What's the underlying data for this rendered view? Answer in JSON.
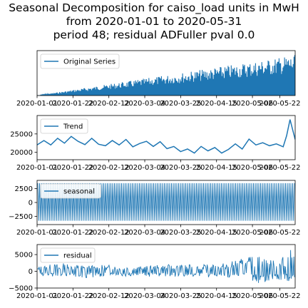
{
  "title_lines": [
    "Seasonal Decomposition for caiso_load units in MwH",
    "from 2020-01-01 to 2020-05-31",
    "period 48;  residual ADFuller pval 0.0"
  ],
  "colors": {
    "series": "#1f77b4"
  },
  "chart_data": [
    {
      "type": "line",
      "title": "",
      "xlabel": "",
      "ylabel": "",
      "xlim": [
        "2020-01-01",
        "2020-05-31"
      ],
      "xticks": [
        "2020-01-01",
        "2020-01-22",
        "2020-02-12",
        "2020-03-04",
        "2020-03-25",
        "2020-04-15",
        "2020-05-06",
        "2020-05-22"
      ],
      "xtick_labels": [
        "2020-01-01",
        "2020-01-22",
        "2020-02-12",
        "2020-03-04",
        "2020-03-25",
        "2020-04-15",
        "2020-05-06",
        "2020-05-22"
      ],
      "yticks": [],
      "ylim": [
        -5000,
        100000
      ],
      "legend": "top-left",
      "series": [
        {
          "name": "Original Series",
          "band": {
            "x": [
              "2020-01-01",
              "2020-05-31"
            ],
            "low": [
              -5000,
              -5000
            ],
            "high": [
              -5000,
              90000
            ]
          },
          "note_text": ""
        }
      ]
    },
    {
      "type": "line",
      "xlim": [
        "2020-01-01",
        "2020-05-31"
      ],
      "xticks": [
        "2020-01-01",
        "2020-01-22",
        "2020-02-12",
        "2020-03-04",
        "2020-03-25",
        "2020-04-15",
        "2020-05-06",
        "2020-05-22"
      ],
      "xtick_labels": [
        "2020-01-01",
        "2020-01-22",
        "2020-02-12",
        "2020-03-04",
        "2020-03-25",
        "2020-04-15",
        "2020-05-06",
        "2020-05-22"
      ],
      "yticks": [
        20000,
        25000
      ],
      "ytick_labels": [
        "20000",
        "25000"
      ],
      "ylim": [
        18000,
        30000
      ],
      "legend": "top-left",
      "series": [
        {
          "name": "Trend",
          "x": [
            "2020-01-01",
            "2020-01-05",
            "2020-01-09",
            "2020-01-13",
            "2020-01-17",
            "2020-01-21",
            "2020-01-25",
            "2020-01-29",
            "2020-02-02",
            "2020-02-06",
            "2020-02-10",
            "2020-02-14",
            "2020-02-18",
            "2020-02-22",
            "2020-02-26",
            "2020-03-01",
            "2020-03-05",
            "2020-03-09",
            "2020-03-13",
            "2020-03-17",
            "2020-03-21",
            "2020-03-25",
            "2020-03-29",
            "2020-04-02",
            "2020-04-06",
            "2020-04-10",
            "2020-04-14",
            "2020-04-18",
            "2020-04-22",
            "2020-04-26",
            "2020-04-30",
            "2020-05-04",
            "2020-05-08",
            "2020-05-12",
            "2020-05-16",
            "2020-05-20",
            "2020-05-24",
            "2020-05-26",
            "2020-05-28",
            "2020-05-31"
          ],
          "y": [
            22000,
            23200,
            22000,
            23800,
            22500,
            24300,
            23000,
            22100,
            23800,
            22200,
            21800,
            23200,
            22000,
            23500,
            21500,
            22400,
            23000,
            21600,
            22900,
            21000,
            21600,
            20200,
            20900,
            19800,
            21600,
            20400,
            21300,
            19800,
            20800,
            22300,
            20900,
            23600,
            22000,
            22600,
            21800,
            22300,
            21500,
            24500,
            28900,
            23500
          ]
        }
      ]
    },
    {
      "type": "line",
      "xlim": [
        "2020-01-01",
        "2020-05-31"
      ],
      "xticks": [
        "2020-01-01",
        "2020-01-22",
        "2020-02-12",
        "2020-03-04",
        "2020-03-25",
        "2020-04-15",
        "2020-05-06",
        "2020-05-22"
      ],
      "xtick_labels": [
        "2020-01-01",
        "2020-01-22",
        "2020-02-12",
        "2020-03-04",
        "2020-03-25",
        "2020-04-15",
        "2020-05-06",
        "2020-05-22"
      ],
      "yticks": [
        -2500,
        0,
        2500
      ],
      "ytick_labels": [
        "−2500",
        "0",
        "2500"
      ],
      "ylim": [
        -4000,
        4000
      ],
      "legend": "top-left",
      "series": [
        {
          "name": "seasonal",
          "band": {
            "x": [
              "2020-01-01",
              "2020-05-31"
            ],
            "low": [
              -3300,
              -3300
            ],
            "high": [
              3500,
              3500
            ]
          }
        }
      ]
    },
    {
      "type": "line",
      "xlim": [
        "2020-01-01",
        "2020-05-31"
      ],
      "xticks": [
        "2020-01-01",
        "2020-01-22",
        "2020-02-12",
        "2020-03-04",
        "2020-03-25",
        "2020-04-15",
        "2020-05-06",
        "2020-05-22"
      ],
      "xtick_labels": [
        "2020-01-01",
        "2020-01-22",
        "2020-02-12",
        "2020-03-04",
        "2020-03-25",
        "2020-04-15",
        "2020-05-06",
        "2020-05-22"
      ],
      "yticks": [
        -5000,
        0,
        5000
      ],
      "ytick_labels": [
        "−5000",
        "0",
        "5000"
      ],
      "ylim": [
        -5000,
        8000
      ],
      "legend": "top-left",
      "series": [
        {
          "name": "residual",
          "band": {
            "x": [
              "2020-01-01",
              "2020-01-15",
              "2020-02-01",
              "2020-02-15",
              "2020-03-01",
              "2020-03-15",
              "2020-04-01",
              "2020-04-15",
              "2020-05-01",
              "2020-05-10",
              "2020-05-20",
              "2020-05-31"
            ],
            "low": [
              -1500,
              -1500,
              -2000,
              -1500,
              -1500,
              -1800,
              -1500,
              -2000,
              -1500,
              -4000,
              -2500,
              -3500
            ],
            "high": [
              1500,
              2500,
              1800,
              2000,
              1500,
              2000,
              2000,
              2000,
              4000,
              5000,
              3000,
              7500
            ]
          }
        }
      ]
    }
  ]
}
